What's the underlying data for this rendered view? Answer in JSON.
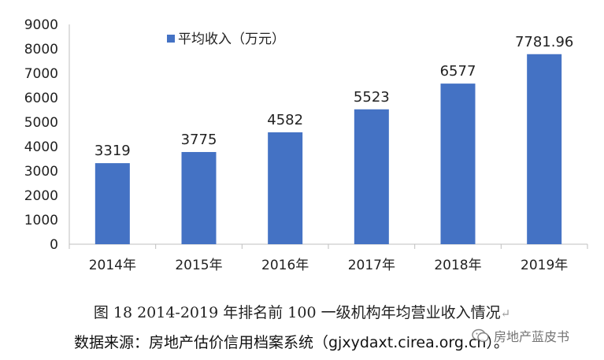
{
  "chart_data": {
    "type": "bar",
    "categories": [
      "2014年",
      "2015年",
      "2016年",
      "2017年",
      "2018年",
      "2019年"
    ],
    "values": [
      3319,
      3775,
      4582,
      5523,
      6577,
      7781.96
    ],
    "value_labels": [
      "3319",
      "3775",
      "4582",
      "5523",
      "6577",
      "7781.96"
    ],
    "ylim": [
      0,
      9000
    ],
    "yticks": [
      0,
      1000,
      2000,
      3000,
      4000,
      5000,
      6000,
      7000,
      8000,
      9000
    ],
    "series": [
      {
        "name": "平均收入（万元）",
        "values": [
          3319,
          3775,
          4582,
          5523,
          6577,
          7781.96
        ]
      }
    ],
    "bar_color": "#4472C4",
    "legend_position": "top-left",
    "grid": false
  },
  "caption": {
    "title": "图 18  2014-2019 年排名前 100 一级机构年均营业收入情况",
    "return_mark": "↵",
    "source": "数据来源：房地产估价信用档案系统（gjxydaxt.cirea.org.cn）。"
  },
  "watermark": {
    "text": "房地产蓝皮书",
    "icon": "wechat-icon"
  }
}
